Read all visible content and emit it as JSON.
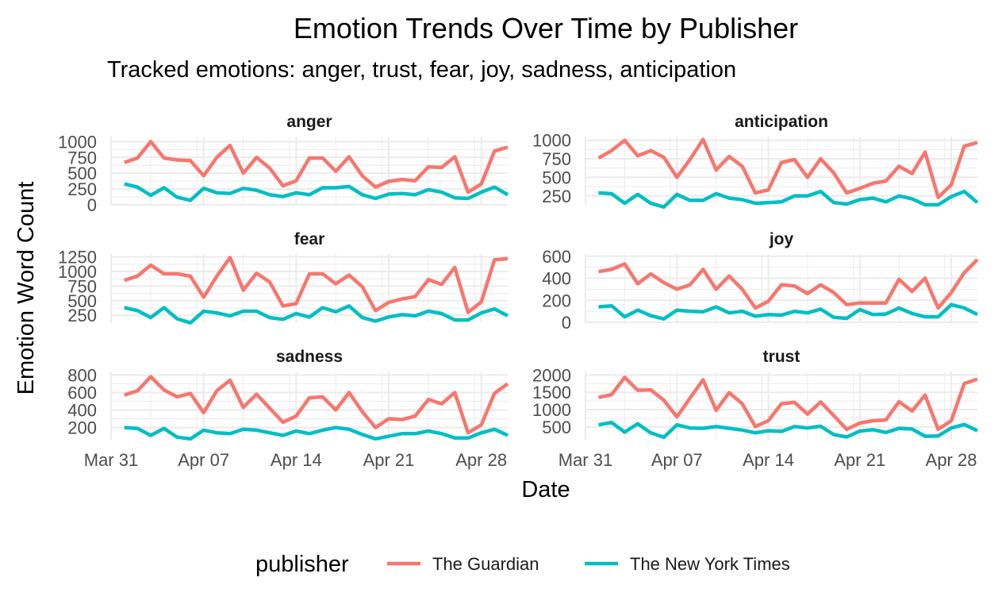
{
  "chart_data": {
    "type": "line",
    "title": "Emotion Trends Over Time by Publisher",
    "subtitle": "Tracked emotions: anger, trust, fear, joy, sadness, anticipation",
    "xlabel": "Date",
    "ylabel": "Emotion Word Count",
    "legend_title": "publisher",
    "legend_position": "bottom",
    "grid": true,
    "x_ticks": [
      {
        "label": "Mar 31",
        "day": 0
      },
      {
        "label": "Apr 07",
        "day": 7
      },
      {
        "label": "Apr 14",
        "day": 14
      },
      {
        "label": "Apr 21",
        "day": 21
      },
      {
        "label": "Apr 28",
        "day": 28
      }
    ],
    "x": [
      "Apr 01",
      "Apr 02",
      "Apr 03",
      "Apr 04",
      "Apr 05",
      "Apr 06",
      "Apr 07",
      "Apr 08",
      "Apr 09",
      "Apr 10",
      "Apr 11",
      "Apr 12",
      "Apr 13",
      "Apr 14",
      "Apr 15",
      "Apr 16",
      "Apr 17",
      "Apr 18",
      "Apr 19",
      "Apr 20",
      "Apr 21",
      "Apr 22",
      "Apr 23",
      "Apr 24",
      "Apr 25",
      "Apr 26",
      "Apr 27",
      "Apr 28",
      "Apr 29",
      "Apr 30"
    ],
    "publishers": [
      {
        "name": "The Guardian",
        "color": "#F8766D"
      },
      {
        "name": "The New York Times",
        "color": "#00BFC4"
      }
    ],
    "panels": [
      {
        "label": "anger",
        "ylim": [
          0,
          1080
        ],
        "y_ticks": [
          0,
          250,
          500,
          750,
          1000
        ],
        "y_tick_labels": [
          "0",
          "250",
          "500",
          "750",
          "1000"
        ],
        "series": [
          {
            "name": "The Guardian",
            "values": [
              670,
              740,
              1000,
              740,
              710,
              700,
              460,
              750,
              940,
              500,
              750,
              580,
              300,
              380,
              740,
              740,
              530,
              760,
              460,
              280,
              370,
              400,
              380,
              600,
              590,
              760,
              200,
              330,
              850,
              910
            ]
          },
          {
            "name": "The New York Times",
            "values": [
              330,
              280,
              150,
              270,
              120,
              70,
              260,
              190,
              180,
              260,
              230,
              160,
              130,
              190,
              160,
              270,
              270,
              290,
              160,
              100,
              170,
              180,
              160,
              240,
              200,
              110,
              100,
              200,
              280,
              160
            ]
          }
        ]
      },
      {
        "label": "anticipation",
        "ylim": [
          130,
          1050
        ],
        "y_ticks": [
          250,
          500,
          750,
          1000
        ],
        "y_tick_labels": [
          "250",
          "500",
          "750",
          "1000"
        ],
        "series": [
          {
            "name": "The Guardian",
            "values": [
              760,
              860,
              1000,
              790,
              860,
              770,
              500,
              740,
              1010,
              600,
              780,
              650,
              290,
              330,
              700,
              740,
              500,
              750,
              560,
              290,
              350,
              420,
              450,
              650,
              550,
              840,
              230,
              400,
              920,
              970
            ]
          },
          {
            "name": "The New York Times",
            "values": [
              290,
              280,
              150,
              270,
              150,
              100,
              270,
              190,
              190,
              280,
              220,
              200,
              150,
              160,
              170,
              250,
              250,
              310,
              160,
              140,
              200,
              220,
              170,
              250,
              210,
              130,
              130,
              240,
              310,
              160
            ]
          }
        ]
      },
      {
        "label": "fear",
        "ylim": [
          130,
          1300
        ],
        "y_ticks": [
          250,
          500,
          750,
          1000,
          1250
        ],
        "y_tick_labels": [
          "250",
          "500",
          "750",
          "1000",
          "1250"
        ],
        "series": [
          {
            "name": "The Guardian",
            "values": [
              850,
              920,
              1110,
              960,
              960,
              920,
              560,
              920,
              1240,
              680,
              970,
              820,
              410,
              450,
              960,
              960,
              790,
              940,
              740,
              330,
              470,
              530,
              570,
              860,
              780,
              1070,
              300,
              480,
              1200,
              1220
            ]
          },
          {
            "name": "The New York Times",
            "values": [
              380,
              330,
              210,
              380,
              190,
              120,
              320,
              290,
              240,
              320,
              320,
              210,
              180,
              280,
              220,
              380,
              310,
              410,
              210,
              150,
              220,
              260,
              240,
              320,
              280,
              170,
              170,
              290,
              360,
              240
            ]
          }
        ]
      },
      {
        "label": "joy",
        "ylim": [
          0,
          620
        ],
        "y_ticks": [
          0,
          200,
          400,
          600
        ],
        "y_tick_labels": [
          "0",
          "200",
          "400",
          "600"
        ],
        "series": [
          {
            "name": "The Guardian",
            "values": [
              460,
              480,
              530,
              350,
              440,
              360,
              300,
              340,
              480,
              300,
              420,
              300,
              130,
              190,
              340,
              330,
              260,
              340,
              270,
              160,
              175,
              175,
              175,
              390,
              280,
              400,
              130,
              270,
              450,
              570
            ]
          },
          {
            "name": "The New York Times",
            "values": [
              140,
              150,
              50,
              110,
              60,
              30,
              110,
              100,
              95,
              140,
              85,
              100,
              55,
              70,
              65,
              100,
              85,
              120,
              45,
              35,
              115,
              70,
              75,
              130,
              80,
              50,
              50,
              160,
              130,
              70
            ]
          }
        ]
      },
      {
        "label": "sadness",
        "ylim": [
          60,
          840
        ],
        "y_ticks": [
          200,
          400,
          600,
          800
        ],
        "y_tick_labels": [
          "200",
          "400",
          "600",
          "800"
        ],
        "series": [
          {
            "name": "The Guardian",
            "values": [
              570,
              620,
              780,
              630,
              550,
              590,
              370,
              620,
              740,
              430,
              580,
              420,
              260,
              330,
              540,
              550,
              400,
              600,
              380,
              200,
              300,
              290,
              330,
              520,
              470,
              600,
              140,
              230,
              590,
              700
            ]
          },
          {
            "name": "The New York Times",
            "values": [
              200,
              190,
              110,
              190,
              90,
              70,
              170,
              140,
              130,
              180,
              170,
              140,
              110,
              160,
              130,
              170,
              200,
              180,
              120,
              70,
              100,
              130,
              130,
              160,
              130,
              80,
              80,
              140,
              180,
              110
            ]
          }
        ]
      },
      {
        "label": "trust",
        "ylim": [
          130,
          2100
        ],
        "y_ticks": [
          500,
          1000,
          1500,
          2000
        ],
        "y_tick_labels": [
          "500",
          "1000",
          "1500",
          "2000"
        ],
        "series": [
          {
            "name": "The Guardian",
            "values": [
              1350,
              1430,
              1930,
              1560,
              1570,
              1270,
              790,
              1330,
              1860,
              980,
              1490,
              1170,
              510,
              680,
              1170,
              1210,
              870,
              1220,
              830,
              430,
              610,
              680,
              700,
              1230,
              960,
              1420,
              430,
              680,
              1750,
              1880
            ]
          },
          {
            "name": "The New York Times",
            "values": [
              560,
              630,
              350,
              590,
              330,
              200,
              560,
              470,
              460,
              510,
              460,
              410,
              330,
              390,
              370,
              510,
              470,
              520,
              280,
              210,
              380,
              420,
              340,
              460,
              440,
              230,
              240,
              470,
              570,
              390
            ]
          }
        ]
      }
    ]
  }
}
